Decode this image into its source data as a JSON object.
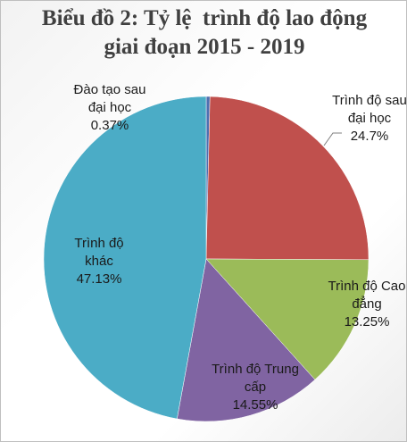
{
  "chart_data": {
    "type": "pie",
    "title": "Biểu đồ 2: Tỷ lệ  trình độ lao động giai đoạn 2015 - 2019",
    "categories": [
      "Đào tạo sau đại học",
      "Trình độ sau đại học",
      "Trình độ Cao đẳng",
      "Trình độ Trung cấp",
      "Trình độ khác"
    ],
    "values": [
      0.37,
      24.7,
      13.25,
      14.55,
      47.13
    ],
    "value_labels": [
      "0.37%",
      "24.7%",
      "13.25%",
      "14.55%",
      "47.13%"
    ],
    "colors": [
      "#4f6fb0",
      "#c0504d",
      "#9bbb59",
      "#8064a2",
      "#4bacc6"
    ]
  }
}
